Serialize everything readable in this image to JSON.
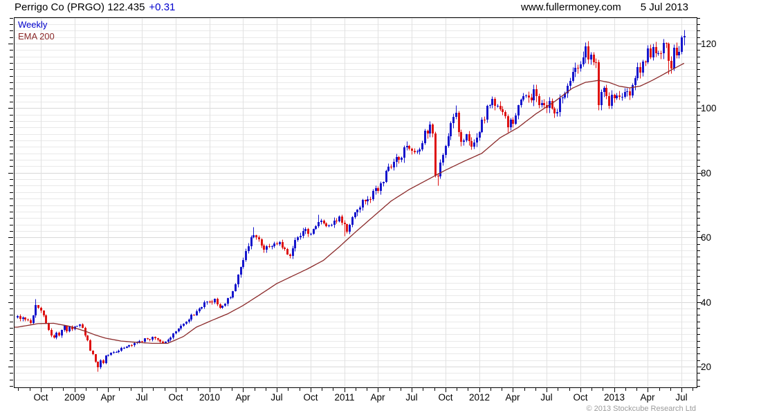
{
  "header": {
    "title_main": "Perrigo Co (PRGO) 122.435",
    "title_change": "+0.31",
    "website": "www.fullermoney.com",
    "date": "5 Jul 2013"
  },
  "legend": {
    "series1": "Weekly",
    "series2": "EMA 200"
  },
  "footer": {
    "copyright": "© 2013 Stockcube Research Ltd"
  },
  "chart_data": {
    "type": "candlestick",
    "title": "Perrigo Co (PRGO) weekly with 200 EMA",
    "instrument": "Perrigo Co",
    "ticker": "PRGO",
    "last_price": 122.435,
    "change": 0.31,
    "timeframe": "Weekly",
    "overlay": "EMA 200",
    "y_axis": {
      "ticks": [
        20,
        40,
        60,
        80,
        100,
        120
      ],
      "minor_step": 2,
      "top_value": 128,
      "bottom_value": 13.6,
      "side": "right"
    },
    "x_axis": {
      "labels": [
        "Oct",
        "2009",
        "Apr",
        "Jul",
        "Oct",
        "2010",
        "Apr",
        "Jul",
        "Oct",
        "2011",
        "Apr",
        "Jul",
        "Oct",
        "2012",
        "Apr",
        "Jul",
        "Oct",
        "2013",
        "Apr",
        "Jul"
      ],
      "first_label_week": 9,
      "weeks_per_label": 13,
      "total_weeks": 258,
      "start": "Aug 2008",
      "end": "5 Jul 2013"
    },
    "colors": {
      "up_candle": "#1515cc",
      "down_candle": "#de1212",
      "ema_line": "#8b2a2a",
      "grid_minor": "#e9e9e9",
      "grid_major": "#d8d8d8",
      "grid_vertical": "#e1e1e1",
      "axis": "#000000",
      "title_change": "#0000cd",
      "copyright": "#9b9b9b"
    },
    "close_anchors": [
      [
        0,
        35.5
      ],
      [
        2,
        34.8
      ],
      [
        4,
        34.2
      ],
      [
        5,
        33.8
      ],
      [
        6,
        35.5
      ],
      [
        7,
        39.5
      ],
      [
        9,
        37.5
      ],
      [
        10,
        36
      ],
      [
        11,
        33.5
      ],
      [
        12,
        31.5
      ],
      [
        13,
        30
      ],
      [
        14,
        29
      ],
      [
        15,
        30.5
      ],
      [
        16,
        29.2
      ],
      [
        17,
        31.5
      ],
      [
        18,
        32.5
      ],
      [
        19,
        31
      ],
      [
        20,
        32
      ],
      [
        22,
        32
      ],
      [
        24,
        33.2
      ],
      [
        25,
        32.5
      ],
      [
        26,
        30
      ],
      [
        27,
        28.5
      ],
      [
        28,
        25
      ],
      [
        29,
        23.5
      ],
      [
        30,
        21.5
      ],
      [
        31,
        19.8
      ],
      [
        32,
        22
      ],
      [
        33,
        21
      ],
      [
        34,
        23
      ],
      [
        36,
        24.2
      ],
      [
        38,
        24.6
      ],
      [
        40,
        25.6
      ],
      [
        43,
        26.6
      ],
      [
        46,
        27.2
      ],
      [
        48,
        28
      ],
      [
        50,
        28.6
      ],
      [
        52,
        29
      ],
      [
        54,
        28.2
      ],
      [
        56,
        27.6
      ],
      [
        58,
        28.6
      ],
      [
        60,
        30
      ],
      [
        62,
        31.5
      ],
      [
        64,
        33.6
      ],
      [
        66,
        35
      ],
      [
        68,
        36.5
      ],
      [
        70,
        38.2
      ],
      [
        72,
        39.5
      ],
      [
        74,
        40.3
      ],
      [
        76,
        40.6
      ],
      [
        78,
        38.8
      ],
      [
        80,
        39.2
      ],
      [
        82,
        42
      ],
      [
        84,
        46
      ],
      [
        86,
        51
      ],
      [
        88,
        56
      ],
      [
        90,
        60.2
      ],
      [
        91,
        61.3
      ],
      [
        93,
        59
      ],
      [
        95,
        56
      ],
      [
        97,
        57.2
      ],
      [
        99,
        58.6
      ],
      [
        101,
        58
      ],
      [
        103,
        56.2
      ],
      [
        105,
        55
      ],
      [
        107,
        58.5
      ],
      [
        109,
        60.5
      ],
      [
        111,
        62
      ],
      [
        113,
        61.5
      ],
      [
        115,
        63.8
      ],
      [
        116,
        65.5
      ],
      [
        118,
        64
      ],
      [
        120,
        62.8
      ],
      [
        122,
        64.5
      ],
      [
        124,
        65.8
      ],
      [
        126,
        64
      ],
      [
        127,
        62.5
      ],
      [
        129,
        66
      ],
      [
        131,
        68.5
      ],
      [
        133,
        70.5
      ],
      [
        135,
        72
      ],
      [
        137,
        73.5
      ],
      [
        139,
        74.8
      ],
      [
        141,
        78
      ],
      [
        143,
        81
      ],
      [
        145,
        83
      ],
      [
        147,
        84.8
      ],
      [
        149,
        86.5
      ],
      [
        151,
        88.5
      ],
      [
        153,
        87
      ],
      [
        154,
        85.5
      ],
      [
        156,
        90.5
      ],
      [
        158,
        93.5
      ],
      [
        159,
        94.5
      ],
      [
        160,
        91.5
      ],
      [
        161,
        78.5
      ],
      [
        162,
        80
      ],
      [
        163,
        83.5
      ],
      [
        164,
        86
      ],
      [
        165,
        88.5
      ],
      [
        166,
        92
      ],
      [
        167,
        95.5
      ],
      [
        168,
        98
      ],
      [
        169,
        99.5
      ],
      [
        170,
        94
      ],
      [
        171,
        90.5
      ],
      [
        172,
        91.5
      ],
      [
        173,
        92.5
      ],
      [
        174,
        90
      ],
      [
        175,
        88.8
      ],
      [
        176,
        89.5
      ],
      [
        177,
        91
      ],
      [
        178,
        93
      ],
      [
        179,
        95.5
      ],
      [
        180,
        98
      ],
      [
        181,
        100.5
      ],
      [
        182,
        102
      ],
      [
        183,
        102.5
      ],
      [
        184,
        100.5
      ],
      [
        185,
        99.5
      ],
      [
        186,
        98.5
      ],
      [
        187,
        97.5
      ],
      [
        188,
        96
      ],
      [
        189,
        94
      ],
      [
        190,
        95
      ],
      [
        191,
        96.5
      ],
      [
        192,
        98
      ],
      [
        193,
        100
      ],
      [
        194,
        103
      ],
      [
        195,
        104.8
      ],
      [
        196,
        103.5
      ],
      [
        197,
        102
      ],
      [
        198,
        103.5
      ],
      [
        199,
        104.5
      ],
      [
        200,
        103.8
      ],
      [
        201,
        102.5
      ],
      [
        202,
        101
      ],
      [
        203,
        99.5
      ],
      [
        204,
        100.5
      ],
      [
        205,
        101.8
      ],
      [
        206,
        100
      ],
      [
        207,
        98.6
      ],
      [
        208,
        100
      ],
      [
        209,
        102
      ],
      [
        210,
        103.5
      ],
      [
        211,
        105.5
      ],
      [
        212,
        107
      ],
      [
        213,
        109
      ],
      [
        214,
        110.5
      ],
      [
        215,
        112
      ],
      [
        216,
        113.5
      ],
      [
        217,
        115
      ],
      [
        218,
        116.5
      ],
      [
        219,
        118
      ],
      [
        220,
        117
      ],
      [
        221,
        116.2
      ],
      [
        222,
        115
      ],
      [
        223,
        114.5
      ],
      [
        224,
        102
      ],
      [
        225,
        103.8
      ],
      [
        226,
        105
      ],
      [
        227,
        102.5
      ],
      [
        228,
        101.5
      ],
      [
        229,
        103
      ],
      [
        230,
        104.5
      ],
      [
        231,
        103.5
      ],
      [
        232,
        102.8
      ],
      [
        233,
        104
      ],
      [
        234,
        106
      ],
      [
        235,
        104.8
      ],
      [
        236,
        105.5
      ],
      [
        237,
        107.5
      ],
      [
        238,
        109.5
      ],
      [
        239,
        111
      ],
      [
        240,
        112.5
      ],
      [
        241,
        114.5
      ],
      [
        242,
        116
      ],
      [
        243,
        117
      ],
      [
        244,
        117.5
      ],
      [
        245,
        119
      ],
      [
        246,
        116.5
      ],
      [
        247,
        117
      ],
      [
        248,
        118.8
      ],
      [
        249,
        119.8
      ],
      [
        250,
        120
      ],
      [
        251,
        115.8
      ],
      [
        252,
        114
      ],
      [
        253,
        117.5
      ],
      [
        254,
        118
      ],
      [
        255,
        119.3
      ],
      [
        256,
        120.8
      ],
      [
        257,
        122.435
      ]
    ],
    "ema_anchors": [
      [
        0,
        32.2
      ],
      [
        8,
        33.3
      ],
      [
        14,
        33.4
      ],
      [
        20,
        32.5
      ],
      [
        26,
        31
      ],
      [
        30,
        29.8
      ],
      [
        34,
        28.8
      ],
      [
        40,
        27.9
      ],
      [
        46,
        27.5
      ],
      [
        52,
        27.2
      ],
      [
        58,
        27.2
      ],
      [
        64,
        29.3
      ],
      [
        69,
        32.2
      ],
      [
        75,
        34.3
      ],
      [
        81,
        36.3
      ],
      [
        87,
        38.9
      ],
      [
        93,
        42
      ],
      [
        100,
        45.7
      ],
      [
        106,
        48
      ],
      [
        112,
        50.3
      ],
      [
        118,
        52.9
      ],
      [
        124,
        57
      ],
      [
        130,
        61.4
      ],
      [
        137,
        66.3
      ],
      [
        144,
        71.2
      ],
      [
        151,
        74.8
      ],
      [
        158,
        77.8
      ],
      [
        165,
        80.8
      ],
      [
        172,
        83.5
      ],
      [
        179,
        86
      ],
      [
        186,
        90.8
      ],
      [
        193,
        94
      ],
      [
        200,
        98.3
      ],
      [
        207,
        102
      ],
      [
        214,
        106.2
      ],
      [
        219,
        108
      ],
      [
        224,
        108.6
      ],
      [
        228,
        108
      ],
      [
        232,
        106.8
      ],
      [
        236,
        106.3
      ],
      [
        240,
        106.8
      ],
      [
        244,
        108.3
      ],
      [
        248,
        110
      ],
      [
        252,
        111.8
      ],
      [
        257,
        113.9
      ]
    ],
    "special_candles": {
      "7": {
        "high": 41
      },
      "31": {
        "low": 18.4
      },
      "91": {
        "high": 63.3
      },
      "116": {
        "high": 67.2
      },
      "126": {
        "low": 60.5
      },
      "159": {
        "high": 96
      },
      "162": {
        "low": 76.2
      },
      "169": {
        "high": 101
      },
      "219": {
        "high": 120.3
      },
      "224": {
        "low": 100.2
      },
      "251": {
        "low": 110.6
      },
      "257": {
        "high": 123,
        "low": 119.5
      }
    }
  }
}
